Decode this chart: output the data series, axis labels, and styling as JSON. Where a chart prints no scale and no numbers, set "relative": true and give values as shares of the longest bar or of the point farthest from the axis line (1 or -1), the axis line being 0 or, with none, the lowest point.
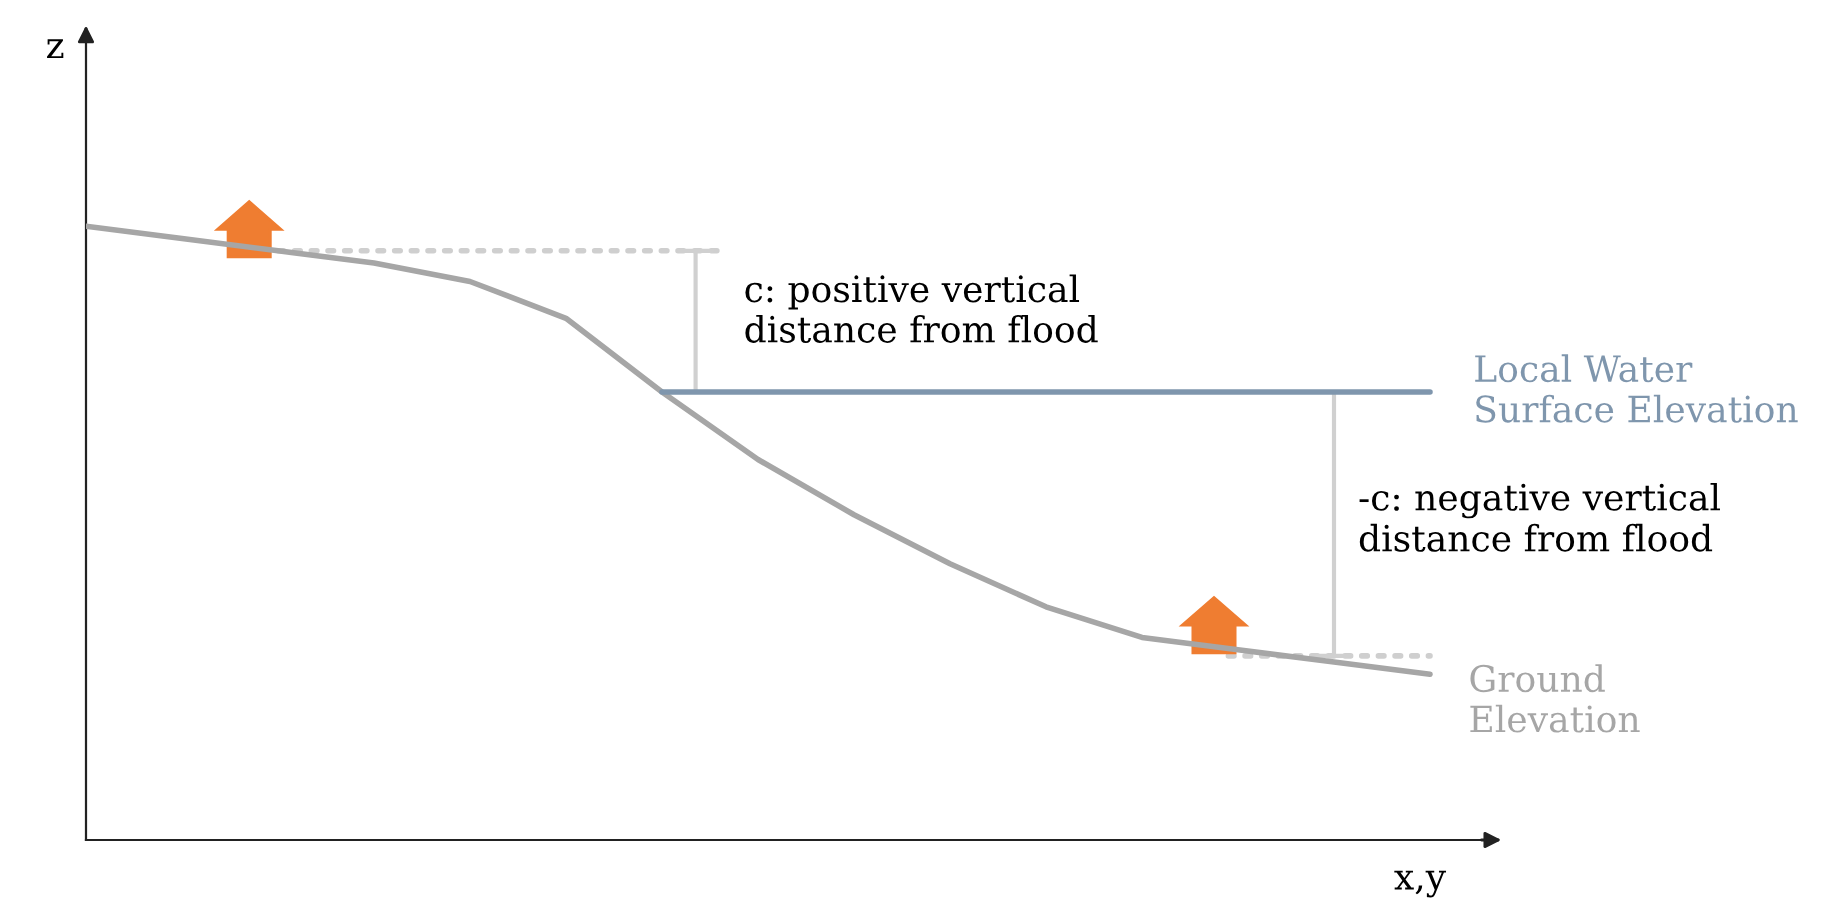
{
  "chart_data": {
    "type": "line",
    "relative": true,
    "xlabel": "x,y",
    "ylabel": "z",
    "categories": [
      null,
      null,
      null,
      null,
      null,
      null,
      null,
      null,
      null,
      null,
      null,
      null,
      null,
      null,
      null
    ],
    "series": [
      {
        "name": "Ground\nElevation",
        "color": "#a6a6a6",
        "values": [
          1.0,
          0.98,
          0.96,
          0.94,
          0.91,
          0.85,
          0.73,
          0.62,
          0.53,
          0.45,
          0.38,
          0.33,
          0.31,
          0.29,
          0.27
        ]
      },
      {
        "name": "Local Water\nSurface Elevation",
        "color": "#7f96ad",
        "values": [
          null,
          null,
          null,
          null,
          null,
          null,
          0.73,
          0.73,
          0.73,
          0.73,
          0.73,
          0.73,
          0.73,
          0.73,
          0.73
        ]
      }
    ],
    "annotations": [
      "c: positive vertical\ndistance from flood",
      "-c: negative vertical\ndistance from flood"
    ]
  }
}
